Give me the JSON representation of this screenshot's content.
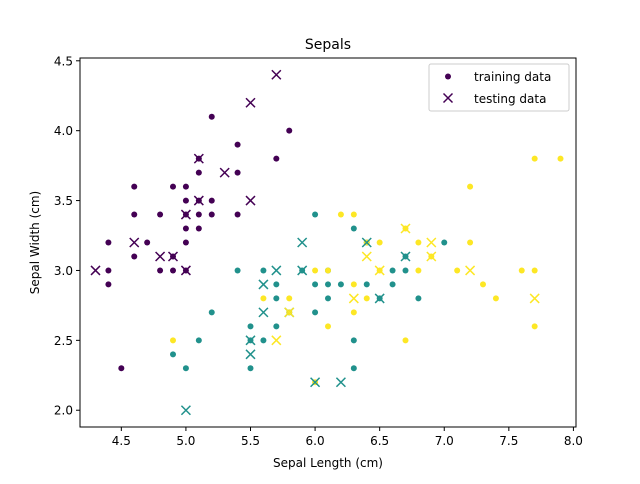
{
  "chart_data": {
    "type": "scatter",
    "title": "Sepals",
    "xlabel": "Sepal Length (cm)",
    "ylabel": "Sepal Width (cm)",
    "xlim": [
      4.18,
      8.02
    ],
    "ylim": [
      1.88,
      4.52
    ],
    "xticks": [
      "4.5",
      "5.0",
      "5.5",
      "6.0",
      "6.5",
      "7.0",
      "7.5",
      "8.0"
    ],
    "yticks": [
      "2.0",
      "2.5",
      "3.0",
      "3.5",
      "4.0",
      "4.5"
    ],
    "grid": false,
    "legend_position": "top-right",
    "class_colors": [
      "#440154",
      "#21918c",
      "#fde725"
    ],
    "series": [
      {
        "name": "training data",
        "marker": "circle",
        "points": [
          {
            "x": 4.4,
            "y": 3.2,
            "c": 0
          },
          {
            "x": 4.4,
            "y": 3.0,
            "c": 0
          },
          {
            "x": 4.4,
            "y": 2.9,
            "c": 0
          },
          {
            "x": 4.5,
            "y": 2.3,
            "c": 0
          },
          {
            "x": 4.6,
            "y": 3.6,
            "c": 0
          },
          {
            "x": 4.6,
            "y": 3.4,
            "c": 0
          },
          {
            "x": 4.6,
            "y": 3.1,
            "c": 0
          },
          {
            "x": 4.7,
            "y": 3.2,
            "c": 0
          },
          {
            "x": 4.8,
            "y": 3.4,
            "c": 0
          },
          {
            "x": 4.8,
            "y": 3.0,
            "c": 0
          },
          {
            "x": 4.9,
            "y": 3.6,
            "c": 0
          },
          {
            "x": 4.9,
            "y": 3.1,
            "c": 0
          },
          {
            "x": 4.9,
            "y": 3.0,
            "c": 0
          },
          {
            "x": 5.0,
            "y": 3.6,
            "c": 0
          },
          {
            "x": 5.0,
            "y": 3.5,
            "c": 0
          },
          {
            "x": 5.0,
            "y": 3.4,
            "c": 0
          },
          {
            "x": 5.0,
            "y": 3.3,
            "c": 0
          },
          {
            "x": 5.0,
            "y": 3.2,
            "c": 0
          },
          {
            "x": 5.0,
            "y": 3.0,
            "c": 0
          },
          {
            "x": 5.1,
            "y": 3.8,
            "c": 0
          },
          {
            "x": 5.1,
            "y": 3.7,
            "c": 0
          },
          {
            "x": 5.1,
            "y": 3.5,
            "c": 0
          },
          {
            "x": 5.1,
            "y": 3.4,
            "c": 0
          },
          {
            "x": 5.1,
            "y": 3.3,
            "c": 0
          },
          {
            "x": 5.2,
            "y": 4.1,
            "c": 0
          },
          {
            "x": 5.2,
            "y": 3.5,
            "c": 0
          },
          {
            "x": 5.2,
            "y": 3.4,
            "c": 0
          },
          {
            "x": 5.4,
            "y": 3.9,
            "c": 0
          },
          {
            "x": 5.4,
            "y": 3.7,
            "c": 0
          },
          {
            "x": 5.4,
            "y": 3.4,
            "c": 0
          },
          {
            "x": 5.7,
            "y": 3.8,
            "c": 0
          },
          {
            "x": 5.8,
            "y": 4.0,
            "c": 0
          },
          {
            "x": 4.9,
            "y": 2.4,
            "c": 1
          },
          {
            "x": 5.0,
            "y": 2.3,
            "c": 1
          },
          {
            "x": 5.1,
            "y": 2.5,
            "c": 1
          },
          {
            "x": 5.2,
            "y": 2.7,
            "c": 1
          },
          {
            "x": 5.4,
            "y": 3.0,
            "c": 1
          },
          {
            "x": 5.5,
            "y": 2.6,
            "c": 1
          },
          {
            "x": 5.5,
            "y": 2.5,
            "c": 1
          },
          {
            "x": 5.5,
            "y": 2.3,
            "c": 1
          },
          {
            "x": 5.6,
            "y": 3.0,
            "c": 1
          },
          {
            "x": 5.6,
            "y": 2.5,
            "c": 1
          },
          {
            "x": 5.7,
            "y": 2.9,
            "c": 1
          },
          {
            "x": 5.7,
            "y": 2.8,
            "c": 1
          },
          {
            "x": 5.7,
            "y": 2.6,
            "c": 1
          },
          {
            "x": 5.8,
            "y": 2.7,
            "c": 1
          },
          {
            "x": 5.9,
            "y": 3.0,
            "c": 1
          },
          {
            "x": 6.0,
            "y": 3.4,
            "c": 1
          },
          {
            "x": 6.0,
            "y": 2.9,
            "c": 1
          },
          {
            "x": 6.0,
            "y": 2.7,
            "c": 1
          },
          {
            "x": 6.1,
            "y": 3.0,
            "c": 1
          },
          {
            "x": 6.1,
            "y": 2.9,
            "c": 1
          },
          {
            "x": 6.1,
            "y": 2.8,
            "c": 1
          },
          {
            "x": 6.2,
            "y": 2.9,
            "c": 1
          },
          {
            "x": 6.3,
            "y": 3.3,
            "c": 1
          },
          {
            "x": 6.3,
            "y": 2.5,
            "c": 1
          },
          {
            "x": 6.3,
            "y": 2.3,
            "c": 1
          },
          {
            "x": 6.4,
            "y": 3.2,
            "c": 1
          },
          {
            "x": 6.4,
            "y": 2.9,
            "c": 1
          },
          {
            "x": 6.5,
            "y": 2.8,
            "c": 1
          },
          {
            "x": 6.6,
            "y": 3.0,
            "c": 1
          },
          {
            "x": 6.6,
            "y": 2.9,
            "c": 1
          },
          {
            "x": 6.7,
            "y": 3.1,
            "c": 1
          },
          {
            "x": 6.7,
            "y": 3.0,
            "c": 1
          },
          {
            "x": 6.8,
            "y": 2.8,
            "c": 1
          },
          {
            "x": 7.0,
            "y": 3.2,
            "c": 1
          },
          {
            "x": 4.9,
            "y": 2.5,
            "c": 2
          },
          {
            "x": 5.6,
            "y": 2.8,
            "c": 2
          },
          {
            "x": 5.8,
            "y": 2.8,
            "c": 2
          },
          {
            "x": 5.8,
            "y": 2.7,
            "c": 2
          },
          {
            "x": 6.0,
            "y": 3.0,
            "c": 2
          },
          {
            "x": 6.0,
            "y": 2.2,
            "c": 2
          },
          {
            "x": 6.1,
            "y": 3.0,
            "c": 2
          },
          {
            "x": 6.1,
            "y": 2.6,
            "c": 2
          },
          {
            "x": 6.2,
            "y": 3.4,
            "c": 2
          },
          {
            "x": 6.3,
            "y": 3.4,
            "c": 2
          },
          {
            "x": 6.3,
            "y": 2.9,
            "c": 2
          },
          {
            "x": 6.3,
            "y": 2.7,
            "c": 2
          },
          {
            "x": 6.4,
            "y": 3.2,
            "c": 2
          },
          {
            "x": 6.4,
            "y": 2.8,
            "c": 2
          },
          {
            "x": 6.5,
            "y": 3.2,
            "c": 2
          },
          {
            "x": 6.5,
            "y": 3.0,
            "c": 2
          },
          {
            "x": 6.7,
            "y": 3.3,
            "c": 2
          },
          {
            "x": 6.7,
            "y": 2.5,
            "c": 2
          },
          {
            "x": 6.8,
            "y": 3.2,
            "c": 2
          },
          {
            "x": 6.8,
            "y": 3.0,
            "c": 2
          },
          {
            "x": 6.9,
            "y": 3.1,
            "c": 2
          },
          {
            "x": 7.1,
            "y": 3.0,
            "c": 2
          },
          {
            "x": 7.2,
            "y": 3.6,
            "c": 2
          },
          {
            "x": 7.2,
            "y": 3.2,
            "c": 2
          },
          {
            "x": 7.3,
            "y": 2.9,
            "c": 2
          },
          {
            "x": 7.4,
            "y": 2.8,
            "c": 2
          },
          {
            "x": 7.6,
            "y": 3.0,
            "c": 2
          },
          {
            "x": 7.7,
            "y": 3.8,
            "c": 2
          },
          {
            "x": 7.7,
            "y": 3.0,
            "c": 2
          },
          {
            "x": 7.7,
            "y": 2.6,
            "c": 2
          },
          {
            "x": 7.9,
            "y": 3.8,
            "c": 2
          }
        ]
      },
      {
        "name": "testing data",
        "marker": "x",
        "points": [
          {
            "x": 4.3,
            "y": 3.0,
            "c": 0
          },
          {
            "x": 4.6,
            "y": 3.2,
            "c": 0
          },
          {
            "x": 4.8,
            "y": 3.1,
            "c": 0
          },
          {
            "x": 4.9,
            "y": 3.1,
            "c": 0
          },
          {
            "x": 5.0,
            "y": 3.0,
            "c": 0
          },
          {
            "x": 5.0,
            "y": 3.4,
            "c": 0
          },
          {
            "x": 5.1,
            "y": 3.8,
            "c": 0
          },
          {
            "x": 5.1,
            "y": 3.5,
            "c": 0
          },
          {
            "x": 5.3,
            "y": 3.7,
            "c": 0
          },
          {
            "x": 5.5,
            "y": 4.2,
            "c": 0
          },
          {
            "x": 5.5,
            "y": 3.5,
            "c": 0
          },
          {
            "x": 5.7,
            "y": 4.4,
            "c": 0
          },
          {
            "x": 5.0,
            "y": 2.0,
            "c": 1
          },
          {
            "x": 5.5,
            "y": 2.5,
            "c": 1
          },
          {
            "x": 5.5,
            "y": 2.4,
            "c": 1
          },
          {
            "x": 5.6,
            "y": 2.9,
            "c": 1
          },
          {
            "x": 5.6,
            "y": 2.7,
            "c": 1
          },
          {
            "x": 5.7,
            "y": 3.0,
            "c": 1
          },
          {
            "x": 5.8,
            "y": 2.7,
            "c": 1
          },
          {
            "x": 5.9,
            "y": 3.2,
            "c": 1
          },
          {
            "x": 5.9,
            "y": 3.0,
            "c": 1
          },
          {
            "x": 6.0,
            "y": 2.2,
            "c": 1
          },
          {
            "x": 6.2,
            "y": 2.2,
            "c": 1
          },
          {
            "x": 6.4,
            "y": 3.2,
            "c": 1
          },
          {
            "x": 6.5,
            "y": 2.8,
            "c": 1
          },
          {
            "x": 6.7,
            "y": 3.1,
            "c": 1
          },
          {
            "x": 5.7,
            "y": 2.5,
            "c": 2
          },
          {
            "x": 5.8,
            "y": 2.7,
            "c": 2
          },
          {
            "x": 6.3,
            "y": 2.8,
            "c": 2
          },
          {
            "x": 6.4,
            "y": 3.1,
            "c": 2
          },
          {
            "x": 6.5,
            "y": 3.0,
            "c": 2
          },
          {
            "x": 6.7,
            "y": 3.3,
            "c": 2
          },
          {
            "x": 6.9,
            "y": 3.2,
            "c": 2
          },
          {
            "x": 6.9,
            "y": 3.1,
            "c": 2
          },
          {
            "x": 7.2,
            "y": 3.0,
            "c": 2
          },
          {
            "x": 7.7,
            "y": 2.8,
            "c": 2
          }
        ]
      }
    ]
  }
}
